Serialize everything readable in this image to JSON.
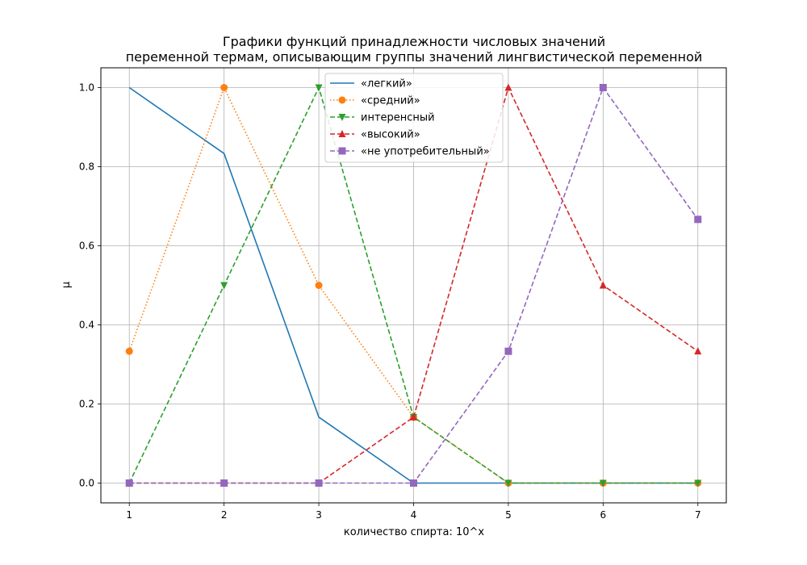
{
  "chart_data": {
    "type": "line",
    "title": [
      "Графики функций принадлежности числовых значений",
      "переменной термам, описывающим группы значений лингвистической переменной"
    ],
    "xlabel": "количество спирта: 10^x",
    "ylabel": "μ",
    "x": [
      1,
      2,
      3,
      4,
      5,
      6,
      7
    ],
    "xlim": [
      0.7,
      7.3
    ],
    "ylim": [
      -0.05,
      1.05
    ],
    "xticks": [
      "1",
      "2",
      "3",
      "4",
      "5",
      "6",
      "7"
    ],
    "yticks": [
      "0.0",
      "0.2",
      "0.4",
      "0.6",
      "0.8",
      "1.0"
    ],
    "grid": true,
    "legend_position": "top-center",
    "series": [
      {
        "name": "«легкий»",
        "color": "#1f77b4",
        "style": "solid",
        "marker": "none",
        "values": [
          1.0,
          0.8333,
          0.1667,
          0.0,
          0.0,
          0.0,
          0.0
        ]
      },
      {
        "name": "«средний»",
        "color": "#ff7f0e",
        "style": "dotted",
        "marker": "circle",
        "values": [
          0.3333,
          1.0,
          0.5,
          0.1667,
          0.0,
          0.0,
          0.0
        ]
      },
      {
        "name": "интеренсный",
        "color": "#2ca02c",
        "style": "dashed",
        "marker": "triangle-down",
        "values": [
          0.0,
          0.5,
          1.0,
          0.1667,
          0.0,
          0.0,
          0.0
        ]
      },
      {
        "name": "«высокий»",
        "color": "#d62728",
        "style": "dashed",
        "marker": "triangle-up",
        "values": [
          0.0,
          0.0,
          0.0,
          0.1667,
          1.0,
          0.5,
          0.3333
        ]
      },
      {
        "name": "«не употребительный»",
        "color": "#9467bd",
        "style": "dashed",
        "marker": "square",
        "values": [
          0.0,
          0.0,
          0.0,
          0.0,
          0.3333,
          1.0,
          0.6667
        ]
      }
    ]
  }
}
